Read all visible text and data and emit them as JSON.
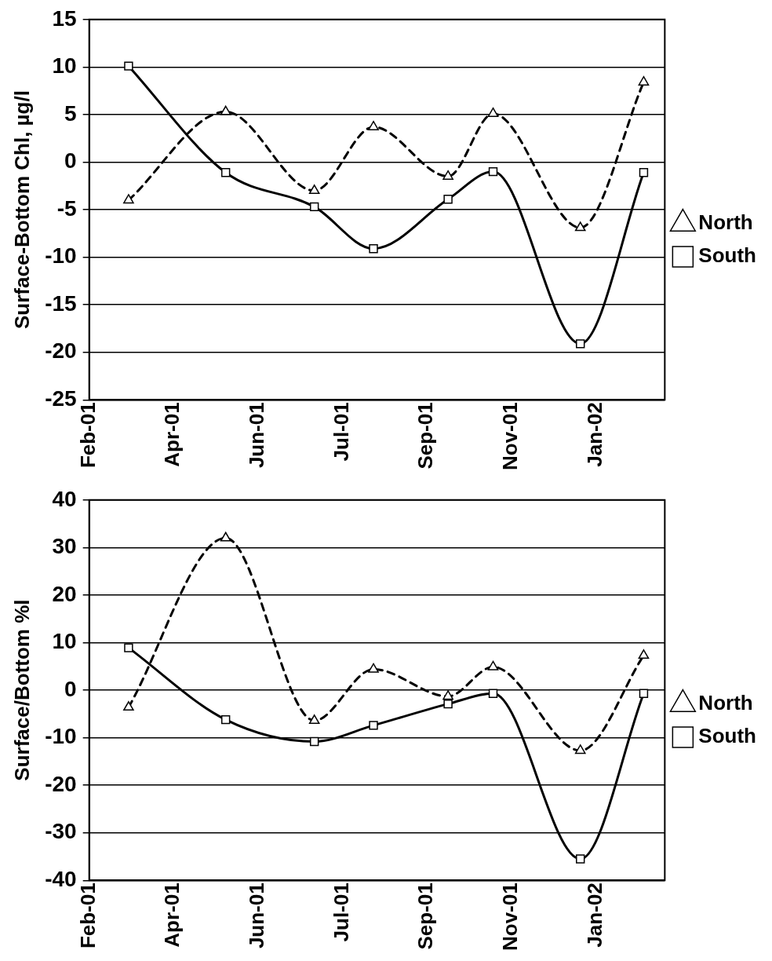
{
  "chart_data": [
    {
      "type": "line",
      "ylabel": "Surface-Bottom Chl, µg/l",
      "x": [
        "2001-03-01",
        "2001-05-09",
        "2001-07-11",
        "2001-08-22",
        "2001-10-14",
        "2001-11-15",
        "2002-01-16",
        "2002-03-02"
      ],
      "series": [
        {
          "name": "North",
          "color": "#000000",
          "marker": "triangle",
          "line_style": "dashed",
          "values": [
            -4.0,
            5.3,
            -3.0,
            3.7,
            -1.5,
            5.1,
            -6.9,
            8.4
          ]
        },
        {
          "name": "South",
          "color": "#000000",
          "marker": "square",
          "line_style": "solid",
          "values": [
            10.1,
            -1.1,
            -4.7,
            -9.1,
            -3.9,
            -1.0,
            -19.1,
            -1.1
          ]
        }
      ],
      "xlim": [
        "2001-02-01",
        "2002-03-17"
      ],
      "xticks": [
        {
          "value": "2001-02-01",
          "label": "Feb-01"
        },
        {
          "value": "2001-04-02",
          "label": "Apr-01"
        },
        {
          "value": "2001-06-01",
          "label": "Jun-01"
        },
        {
          "value": "2001-07-31",
          "label": "Jul-01"
        },
        {
          "value": "2001-09-29",
          "label": "Sep-01"
        },
        {
          "value": "2001-11-28",
          "label": "Nov-01"
        },
        {
          "value": "2002-01-27",
          "label": "Jan-02"
        }
      ],
      "ylim": [
        -25,
        15
      ],
      "yticks": [
        -25,
        -20,
        -15,
        -10,
        -5,
        0,
        5,
        10,
        15
      ],
      "grid": "y",
      "legend": "right"
    },
    {
      "type": "line",
      "ylabel": "Surface/Bottom %l",
      "x": [
        "2001-03-01",
        "2001-05-09",
        "2001-07-11",
        "2001-08-22",
        "2001-10-14",
        "2001-11-15",
        "2002-01-16",
        "2002-03-02"
      ],
      "series": [
        {
          "name": "North",
          "color": "#000000",
          "marker": "triangle",
          "line_style": "dashed",
          "values": [
            -3.6,
            32.0,
            -6.4,
            4.4,
            -1.3,
            4.9,
            -12.7,
            7.3
          ]
        },
        {
          "name": "South",
          "color": "#000000",
          "marker": "square",
          "line_style": "solid",
          "values": [
            8.9,
            -6.2,
            -10.8,
            -7.4,
            -2.9,
            -0.7,
            -35.5,
            -0.7
          ]
        }
      ],
      "xlim": [
        "2001-02-01",
        "2002-03-17"
      ],
      "xticks": [
        {
          "value": "2001-02-01",
          "label": "Feb-01"
        },
        {
          "value": "2001-04-02",
          "label": "Apr-01"
        },
        {
          "value": "2001-06-01",
          "label": "Jun-01"
        },
        {
          "value": "2001-07-31",
          "label": "Jul-01"
        },
        {
          "value": "2001-09-29",
          "label": "Sep-01"
        },
        {
          "value": "2001-11-28",
          "label": "Nov-01"
        },
        {
          "value": "2002-01-27",
          "label": "Jan-02"
        }
      ],
      "ylim": [
        -40,
        40
      ],
      "yticks": [
        -40,
        -30,
        -20,
        -10,
        0,
        10,
        20,
        30,
        40
      ],
      "grid": "y",
      "legend": "right"
    }
  ]
}
